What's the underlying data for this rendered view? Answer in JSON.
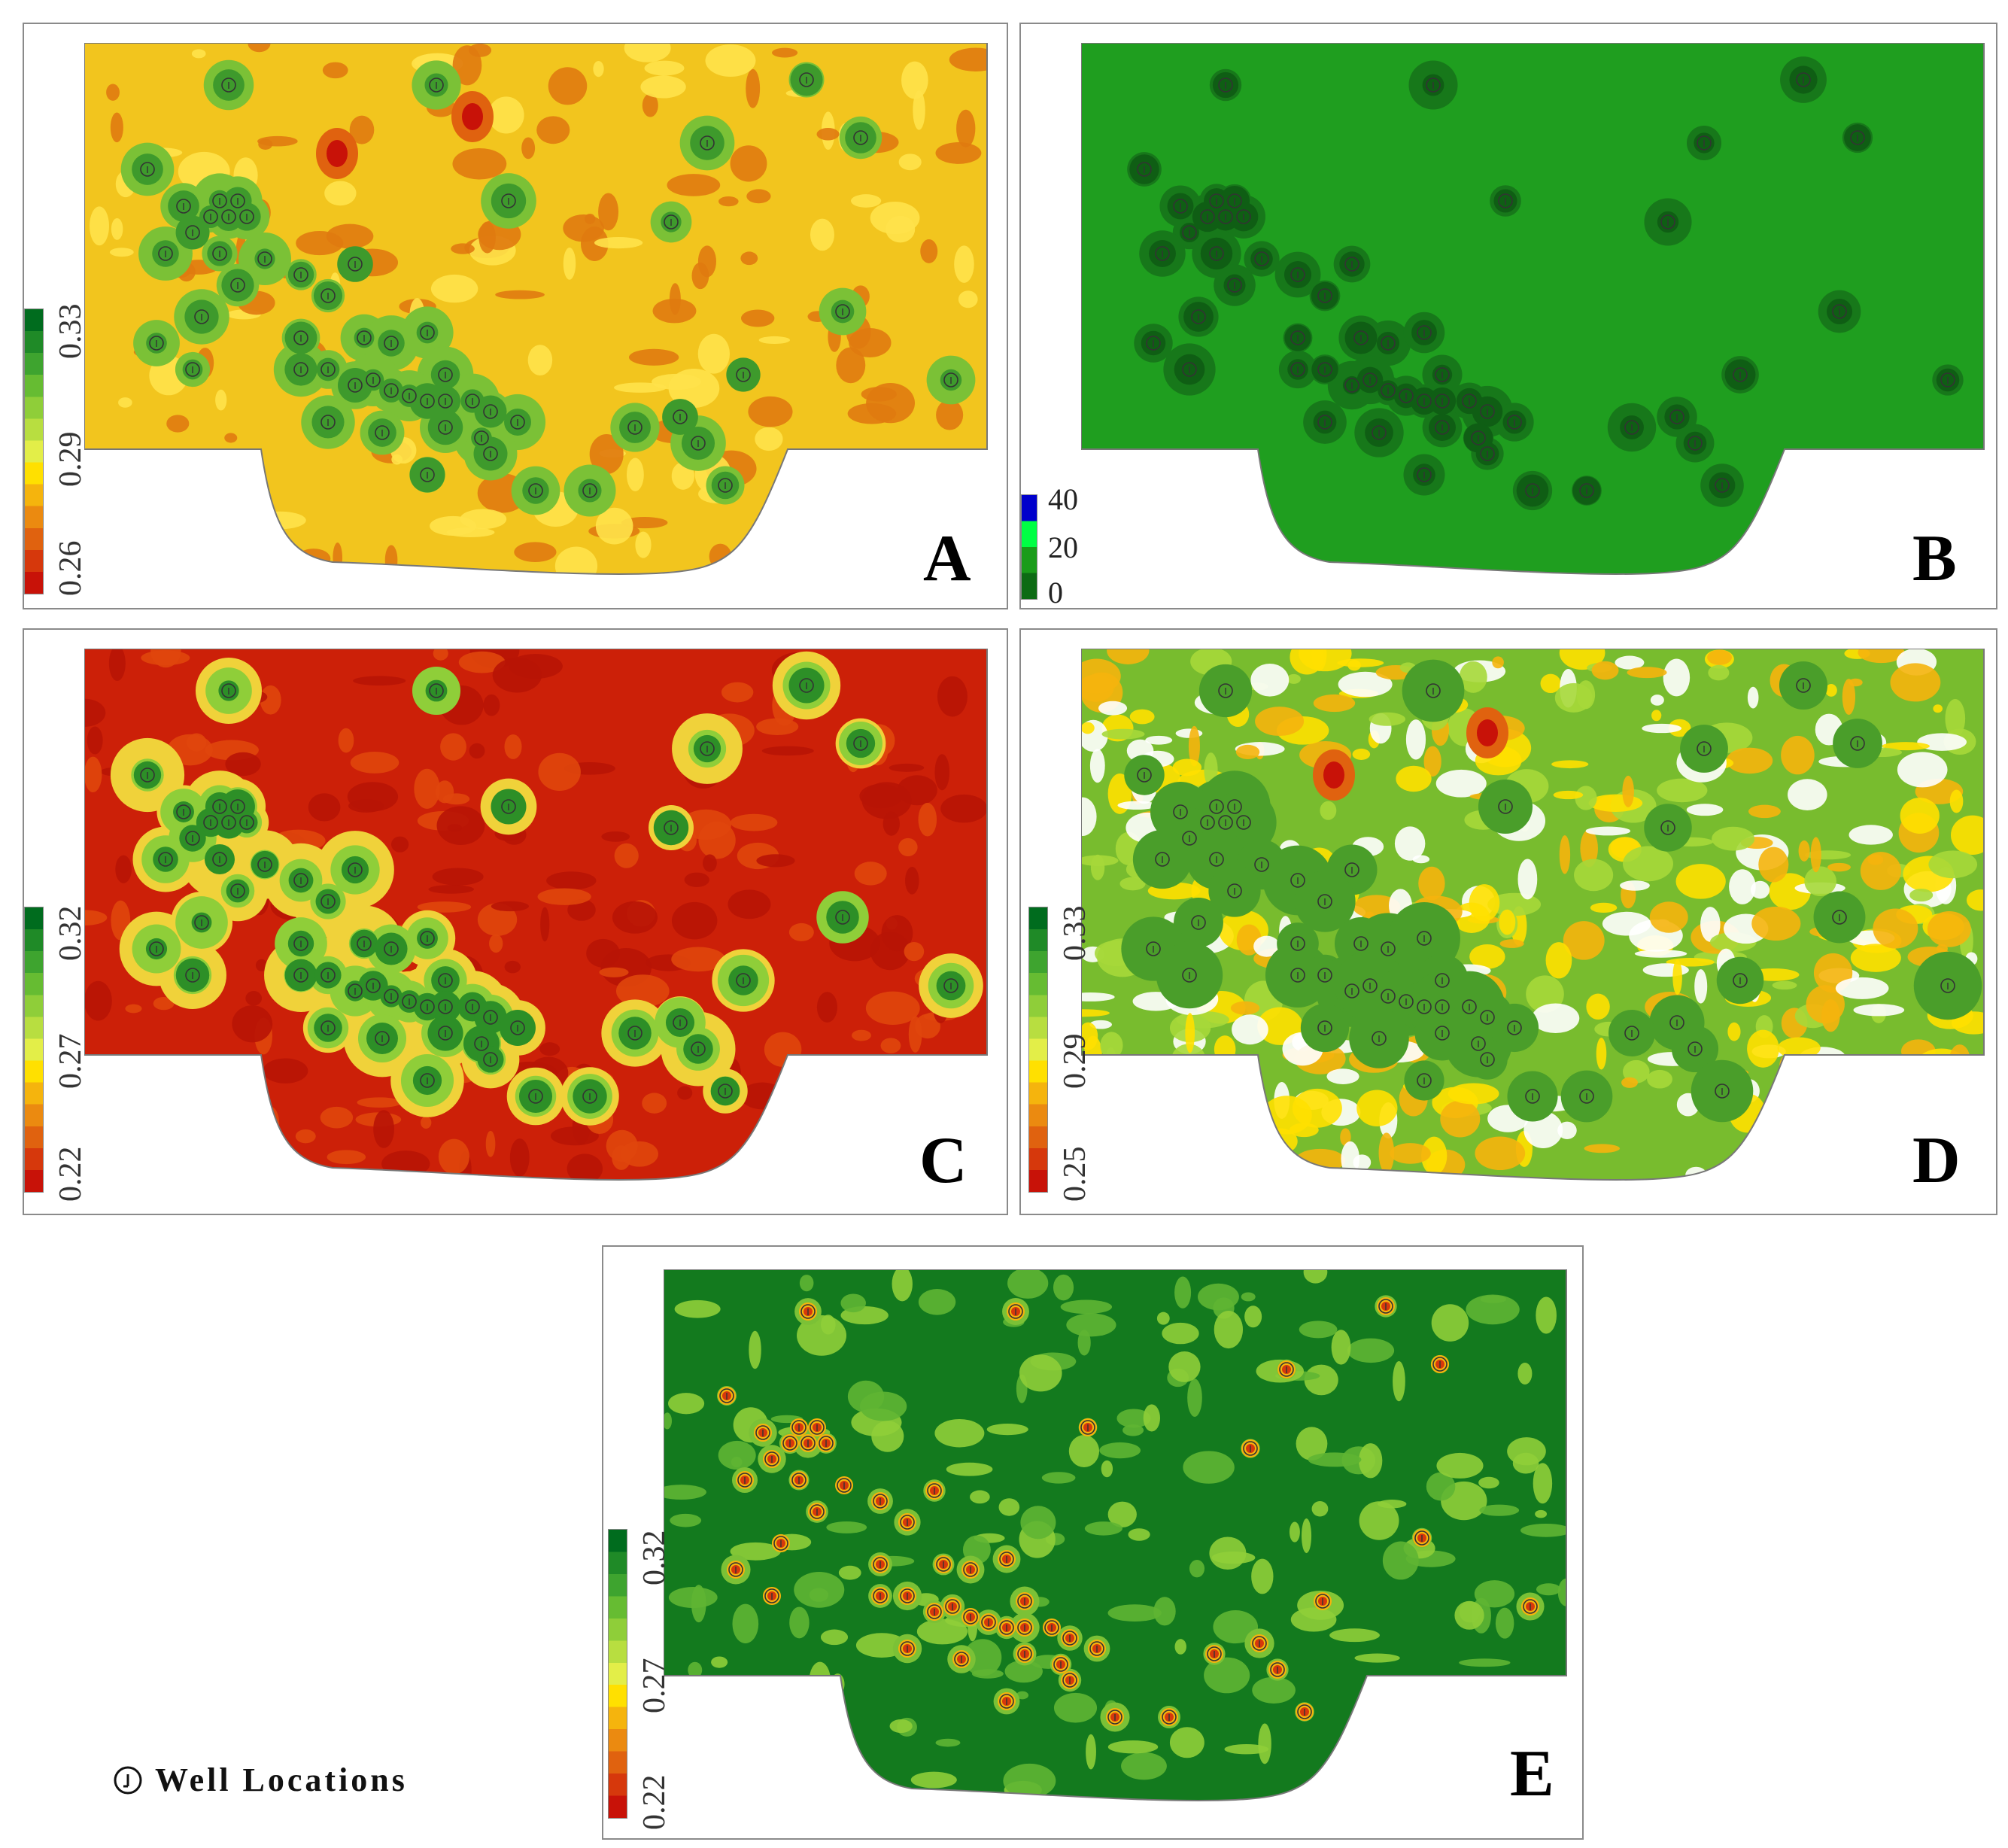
{
  "panels": [
    {
      "letter": "A",
      "style": "porosity-a",
      "colorbar": {
        "colors": [
          "#006c1e",
          "#1f8a27",
          "#3ea42f",
          "#66bc32",
          "#8fce39",
          "#b8de40",
          "#e3ee48",
          "#ffe000",
          "#f5b40d",
          "#eb8a10",
          "#e0620f",
          "#d6380c",
          "#c81208"
        ],
        "labels": [
          "0.33",
          "0.29",
          "0.26"
        ]
      }
    },
    {
      "letter": "B",
      "style": "deviation",
      "colorbar": {
        "colors": [
          "#0000cc",
          "#00ff44",
          "#1a9c1a",
          "#0d6b14"
        ],
        "labels": [
          "40",
          "20",
          "0"
        ]
      }
    },
    {
      "letter": "C",
      "style": "porosity-c",
      "colorbar": {
        "colors": [
          "#006c1e",
          "#1f8a27",
          "#3ea42f",
          "#66bc32",
          "#8fce39",
          "#b8de40",
          "#e3ee48",
          "#ffe000",
          "#f5b40d",
          "#eb8a10",
          "#e0620f",
          "#d6380c",
          "#c81208"
        ],
        "labels": [
          "0.32",
          "0.27",
          "0.22"
        ]
      }
    },
    {
      "letter": "D",
      "style": "porosity-d",
      "colorbar": {
        "colors": [
          "#006c1e",
          "#1f8a27",
          "#3ea42f",
          "#66bc32",
          "#8fce39",
          "#b8de40",
          "#e3ee48",
          "#ffe000",
          "#f5b40d",
          "#eb8a10",
          "#e0620f",
          "#d6380c",
          "#c81208"
        ],
        "labels": [
          "0.33",
          "0.29",
          "0.25"
        ]
      }
    },
    {
      "letter": "E",
      "style": "porosity-e",
      "colorbar": {
        "colors": [
          "#006c1e",
          "#1f8a27",
          "#3ea42f",
          "#66bc32",
          "#8fce39",
          "#b8de40",
          "#e3ee48",
          "#ffe000",
          "#f5b40d",
          "#eb8a10",
          "#e0620f",
          "#d6380c",
          "#c81208"
        ],
        "labels": [
          "0.32",
          "0.27",
          "0.22"
        ]
      }
    }
  ],
  "legend": {
    "label": "Well Locations",
    "icon": "well-location-icon"
  }
}
